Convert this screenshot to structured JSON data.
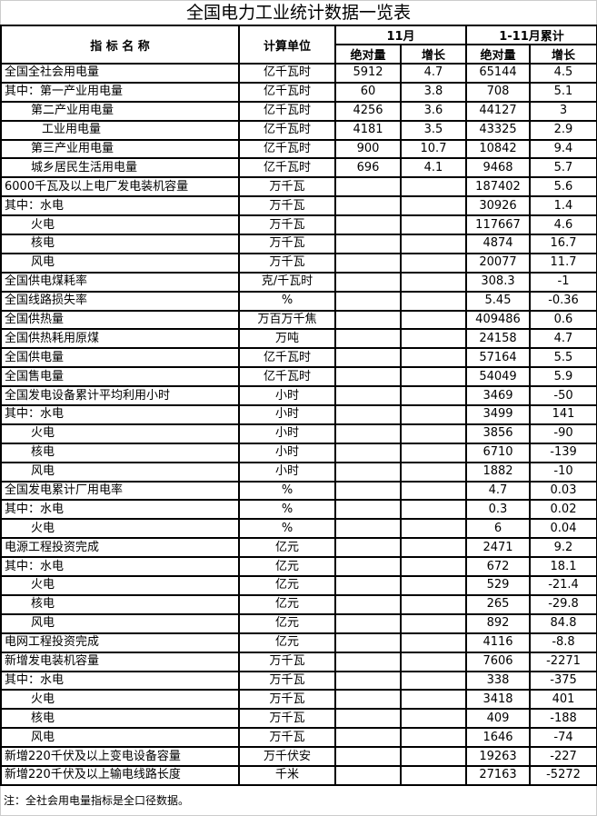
{
  "title": "全国电力工业统计数据一览表",
  "headers": {
    "indicator": "指 标 名 称",
    "unit": "计算单位",
    "month": "11月",
    "cumulative": "1-11月累计",
    "absolute": "绝对量",
    "growth": "增长"
  },
  "rows": [
    {
      "name": "全国全社会用电量",
      "level": 0,
      "unit": "亿千瓦时",
      "m_abs": "5912",
      "m_gr": "4.7",
      "c_abs": "65144",
      "c_gr": "4.5"
    },
    {
      "name": "其中：第一产业用电量",
      "level": 0,
      "unit": "亿千瓦时",
      "m_abs": "60",
      "m_gr": "3.8",
      "c_abs": "708",
      "c_gr": "5.1"
    },
    {
      "name": "第二产业用电量",
      "level": 1,
      "unit": "亿千瓦时",
      "m_abs": "4256",
      "m_gr": "3.6",
      "c_abs": "44127",
      "c_gr": "3"
    },
    {
      "name": "工业用电量",
      "level": 2,
      "unit": "亿千瓦时",
      "m_abs": "4181",
      "m_gr": "3.5",
      "c_abs": "43325",
      "c_gr": "2.9"
    },
    {
      "name": "第三产业用电量",
      "level": 1,
      "unit": "亿千瓦时",
      "m_abs": "900",
      "m_gr": "10.7",
      "c_abs": "10842",
      "c_gr": "9.4"
    },
    {
      "name": "城乡居民生活用电量",
      "level": 1,
      "unit": "亿千瓦时",
      "m_abs": "696",
      "m_gr": "4.1",
      "c_abs": "9468",
      "c_gr": "5.7"
    },
    {
      "name": "6000千瓦及以上电厂发电装机容量",
      "level": 0,
      "unit": "万千瓦",
      "m_abs": "",
      "m_gr": "",
      "c_abs": "187402",
      "c_gr": "5.6"
    },
    {
      "name": "其中：水电",
      "level": 0,
      "unit": "万千瓦",
      "m_abs": "",
      "m_gr": "",
      "c_abs": "30926",
      "c_gr": "1.4"
    },
    {
      "name": "火电",
      "level": 1,
      "unit": "万千瓦",
      "m_abs": "",
      "m_gr": "",
      "c_abs": "117667",
      "c_gr": "4.6"
    },
    {
      "name": "核电",
      "level": 1,
      "unit": "万千瓦",
      "m_abs": "",
      "m_gr": "",
      "c_abs": "4874",
      "c_gr": "16.7"
    },
    {
      "name": "风电",
      "level": 1,
      "unit": "万千瓦",
      "m_abs": "",
      "m_gr": "",
      "c_abs": "20077",
      "c_gr": "11.7"
    },
    {
      "name": "全国供电煤耗率",
      "level": 0,
      "unit": "克/千瓦时",
      "m_abs": "",
      "m_gr": "",
      "c_abs": "308.3",
      "c_gr": "-1"
    },
    {
      "name": "全国线路损失率",
      "level": 0,
      "unit": "%",
      "m_abs": "",
      "m_gr": "",
      "c_abs": "5.45",
      "c_gr": "-0.36"
    },
    {
      "name": "全国供热量",
      "level": 0,
      "unit": "万百万千焦",
      "m_abs": "",
      "m_gr": "",
      "c_abs": "409486",
      "c_gr": "0.6"
    },
    {
      "name": "全国供热耗用原煤",
      "level": 0,
      "unit": "万吨",
      "m_abs": "",
      "m_gr": "",
      "c_abs": "24158",
      "c_gr": "4.7"
    },
    {
      "name": "全国供电量",
      "level": 0,
      "unit": "亿千瓦时",
      "m_abs": "",
      "m_gr": "",
      "c_abs": "57164",
      "c_gr": "5.5"
    },
    {
      "name": "全国售电量",
      "level": 0,
      "unit": "亿千瓦时",
      "m_abs": "",
      "m_gr": "",
      "c_abs": "54049",
      "c_gr": "5.9"
    },
    {
      "name": "全国发电设备累计平均利用小时",
      "level": 0,
      "unit": "小时",
      "m_abs": "",
      "m_gr": "",
      "c_abs": "3469",
      "c_gr": "-50"
    },
    {
      "name": "其中：水电",
      "level": 0,
      "unit": "小时",
      "m_abs": "",
      "m_gr": "",
      "c_abs": "3499",
      "c_gr": "141"
    },
    {
      "name": "火电",
      "level": 1,
      "unit": "小时",
      "m_abs": "",
      "m_gr": "",
      "c_abs": "3856",
      "c_gr": "-90"
    },
    {
      "name": "核电",
      "level": 1,
      "unit": "小时",
      "m_abs": "",
      "m_gr": "",
      "c_abs": "6710",
      "c_gr": "-139"
    },
    {
      "name": "风电",
      "level": 1,
      "unit": "小时",
      "m_abs": "",
      "m_gr": "",
      "c_abs": "1882",
      "c_gr": "-10"
    },
    {
      "name": "全国发电累计厂用电率",
      "level": 0,
      "unit": "%",
      "m_abs": "",
      "m_gr": "",
      "c_abs": "4.7",
      "c_gr": "0.03"
    },
    {
      "name": "其中：水电",
      "level": 0,
      "unit": "%",
      "m_abs": "",
      "m_gr": "",
      "c_abs": "0.3",
      "c_gr": "0.02"
    },
    {
      "name": "火电",
      "level": 1,
      "unit": "%",
      "m_abs": "",
      "m_gr": "",
      "c_abs": "6",
      "c_gr": "0.04"
    },
    {
      "name": "电源工程投资完成",
      "level": 0,
      "unit": "亿元",
      "m_abs": "",
      "m_gr": "",
      "c_abs": "2471",
      "c_gr": "9.2"
    },
    {
      "name": "其中：水电",
      "level": 0,
      "unit": "亿元",
      "m_abs": "",
      "m_gr": "",
      "c_abs": "672",
      "c_gr": "18.1"
    },
    {
      "name": "火电",
      "level": 1,
      "unit": "亿元",
      "m_abs": "",
      "m_gr": "",
      "c_abs": "529",
      "c_gr": "-21.4"
    },
    {
      "name": "核电",
      "level": 1,
      "unit": "亿元",
      "m_abs": "",
      "m_gr": "",
      "c_abs": "265",
      "c_gr": "-29.8"
    },
    {
      "name": "风电",
      "level": 1,
      "unit": "亿元",
      "m_abs": "",
      "m_gr": "",
      "c_abs": "892",
      "c_gr": "84.8"
    },
    {
      "name": "电网工程投资完成",
      "level": 0,
      "unit": "亿元",
      "m_abs": "",
      "m_gr": "",
      "c_abs": "4116",
      "c_gr": "-8.8"
    },
    {
      "name": "新增发电装机容量",
      "level": 0,
      "unit": "万千瓦",
      "m_abs": "",
      "m_gr": "",
      "c_abs": "7606",
      "c_gr": "-2271"
    },
    {
      "name": "其中：水电",
      "level": 0,
      "unit": "万千瓦",
      "m_abs": "",
      "m_gr": "",
      "c_abs": "338",
      "c_gr": "-375"
    },
    {
      "name": "火电",
      "level": 1,
      "unit": "万千瓦",
      "m_abs": "",
      "m_gr": "",
      "c_abs": "3418",
      "c_gr": "401"
    },
    {
      "name": "核电",
      "level": 1,
      "unit": "万千瓦",
      "m_abs": "",
      "m_gr": "",
      "c_abs": "409",
      "c_gr": "-188"
    },
    {
      "name": "风电",
      "level": 1,
      "unit": "万千瓦",
      "m_abs": "",
      "m_gr": "",
      "c_abs": "1646",
      "c_gr": "-74"
    },
    {
      "name": "新增220千伏及以上变电设备容量",
      "level": 0,
      "unit": "万千伏安",
      "m_abs": "",
      "m_gr": "",
      "c_abs": "19263",
      "c_gr": "-227"
    },
    {
      "name": "新增220千伏及以上输电线路长度",
      "level": 0,
      "unit": "千米",
      "m_abs": "",
      "m_gr": "",
      "c_abs": "27163",
      "c_gr": "-5272"
    }
  ],
  "note": "注：全社会用电量指标是全口径数据。"
}
